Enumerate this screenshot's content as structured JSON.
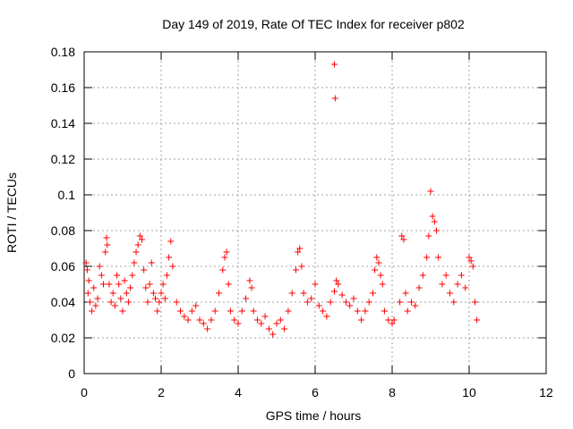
{
  "chart_data": {
    "type": "scatter",
    "title": "Day 149 of 2019, Rate Of TEC Index for receiver p802",
    "xlabel": "GPS time / hours",
    "ylabel": "ROTI / TECUs",
    "xlim": [
      0,
      12
    ],
    "ylim": [
      0,
      0.18
    ],
    "x_ticks": [
      0,
      2,
      4,
      6,
      8,
      10,
      12
    ],
    "y_ticks": [
      0,
      0.02,
      0.04,
      0.06,
      0.08,
      0.1,
      0.12,
      0.14,
      0.16,
      0.18
    ],
    "x_tick_labels": [
      "0",
      "2",
      "4",
      "6",
      "8",
      "10",
      "12"
    ],
    "y_tick_labels": [
      "0",
      "0.02",
      "0.04",
      "0.06",
      "0.08",
      "0.1",
      "0.12",
      "0.14",
      "0.16",
      "0.18"
    ],
    "grid": true,
    "marker": "+",
    "marker_color": "#ff0000",
    "series": [
      {
        "name": "ROTI",
        "points": [
          [
            0.05,
            0.062
          ],
          [
            0.08,
            0.058
          ],
          [
            0.1,
            0.045
          ],
          [
            0.12,
            0.052
          ],
          [
            0.15,
            0.04
          ],
          [
            0.2,
            0.035
          ],
          [
            0.25,
            0.048
          ],
          [
            0.3,
            0.038
          ],
          [
            0.35,
            0.042
          ],
          [
            0.4,
            0.06
          ],
          [
            0.45,
            0.055
          ],
          [
            0.5,
            0.05
          ],
          [
            0.55,
            0.068
          ],
          [
            0.58,
            0.076
          ],
          [
            0.6,
            0.072
          ],
          [
            0.65,
            0.05
          ],
          [
            0.7,
            0.04
          ],
          [
            0.75,
            0.045
          ],
          [
            0.8,
            0.038
          ],
          [
            0.85,
            0.055
          ],
          [
            0.9,
            0.05
          ],
          [
            0.95,
            0.042
          ],
          [
            1.0,
            0.035
          ],
          [
            1.05,
            0.052
          ],
          [
            1.1,
            0.045
          ],
          [
            1.15,
            0.04
          ],
          [
            1.2,
            0.048
          ],
          [
            1.25,
            0.055
          ],
          [
            1.3,
            0.062
          ],
          [
            1.35,
            0.068
          ],
          [
            1.4,
            0.072
          ],
          [
            1.45,
            0.077
          ],
          [
            1.5,
            0.075
          ],
          [
            1.55,
            0.058
          ],
          [
            1.6,
            0.048
          ],
          [
            1.65,
            0.04
          ],
          [
            1.7,
            0.05
          ],
          [
            1.75,
            0.062
          ],
          [
            1.8,
            0.045
          ],
          [
            1.85,
            0.042
          ],
          [
            1.9,
            0.035
          ],
          [
            1.95,
            0.04
          ],
          [
            2.0,
            0.045
          ],
          [
            2.05,
            0.05
          ],
          [
            2.1,
            0.042
          ],
          [
            2.15,
            0.055
          ],
          [
            2.2,
            0.065
          ],
          [
            2.25,
            0.074
          ],
          [
            2.3,
            0.06
          ],
          [
            2.4,
            0.04
          ],
          [
            2.5,
            0.035
          ],
          [
            2.6,
            0.032
          ],
          [
            2.7,
            0.03
          ],
          [
            2.8,
            0.035
          ],
          [
            2.9,
            0.038
          ],
          [
            3.0,
            0.03
          ],
          [
            3.1,
            0.028
          ],
          [
            3.2,
            0.025
          ],
          [
            3.3,
            0.03
          ],
          [
            3.4,
            0.035
          ],
          [
            3.5,
            0.045
          ],
          [
            3.6,
            0.058
          ],
          [
            3.65,
            0.065
          ],
          [
            3.7,
            0.068
          ],
          [
            3.75,
            0.05
          ],
          [
            3.8,
            0.035
          ],
          [
            3.9,
            0.03
          ],
          [
            4.0,
            0.028
          ],
          [
            4.1,
            0.035
          ],
          [
            4.2,
            0.042
          ],
          [
            4.3,
            0.052
          ],
          [
            4.35,
            0.048
          ],
          [
            4.4,
            0.035
          ],
          [
            4.5,
            0.03
          ],
          [
            4.6,
            0.028
          ],
          [
            4.7,
            0.032
          ],
          [
            4.8,
            0.025
          ],
          [
            4.9,
            0.022
          ],
          [
            5.0,
            0.028
          ],
          [
            5.1,
            0.03
          ],
          [
            5.2,
            0.025
          ],
          [
            5.3,
            0.035
          ],
          [
            5.4,
            0.045
          ],
          [
            5.5,
            0.058
          ],
          [
            5.55,
            0.068
          ],
          [
            5.6,
            0.07
          ],
          [
            5.65,
            0.06
          ],
          [
            5.7,
            0.045
          ],
          [
            5.8,
            0.04
          ],
          [
            5.9,
            0.042
          ],
          [
            6.0,
            0.05
          ],
          [
            6.1,
            0.038
          ],
          [
            6.2,
            0.035
          ],
          [
            6.3,
            0.032
          ],
          [
            6.4,
            0.04
          ],
          [
            6.5,
            0.046
          ],
          [
            6.55,
            0.052
          ],
          [
            6.6,
            0.05
          ],
          [
            6.7,
            0.044
          ],
          [
            6.8,
            0.04
          ],
          [
            6.9,
            0.038
          ],
          [
            7.0,
            0.042
          ],
          [
            7.1,
            0.035
          ],
          [
            7.2,
            0.03
          ],
          [
            7.3,
            0.035
          ],
          [
            7.4,
            0.04
          ],
          [
            7.5,
            0.045
          ],
          [
            7.55,
            0.058
          ],
          [
            7.6,
            0.065
          ],
          [
            7.65,
            0.062
          ],
          [
            7.7,
            0.055
          ],
          [
            7.75,
            0.05
          ],
          [
            7.8,
            0.035
          ],
          [
            7.9,
            0.03
          ],
          [
            8.0,
            0.028
          ],
          [
            8.05,
            0.03
          ],
          [
            8.2,
            0.04
          ],
          [
            8.25,
            0.077
          ],
          [
            8.3,
            0.075
          ],
          [
            8.35,
            0.045
          ],
          [
            8.4,
            0.035
          ],
          [
            8.5,
            0.04
          ],
          [
            8.6,
            0.038
          ],
          [
            8.7,
            0.048
          ],
          [
            8.8,
            0.055
          ],
          [
            8.9,
            0.065
          ],
          [
            8.95,
            0.077
          ],
          [
            9.0,
            0.102
          ],
          [
            9.05,
            0.088
          ],
          [
            9.1,
            0.085
          ],
          [
            9.15,
            0.08
          ],
          [
            9.2,
            0.065
          ],
          [
            9.3,
            0.05
          ],
          [
            9.4,
            0.055
          ],
          [
            9.5,
            0.045
          ],
          [
            9.6,
            0.04
          ],
          [
            9.7,
            0.05
          ],
          [
            9.8,
            0.055
          ],
          [
            9.9,
            0.048
          ],
          [
            10.0,
            0.065
          ],
          [
            10.05,
            0.063
          ],
          [
            10.1,
            0.06
          ],
          [
            10.15,
            0.04
          ],
          [
            10.2,
            0.03
          ],
          [
            6.5,
            0.173
          ],
          [
            6.52,
            0.154
          ]
        ]
      }
    ]
  }
}
